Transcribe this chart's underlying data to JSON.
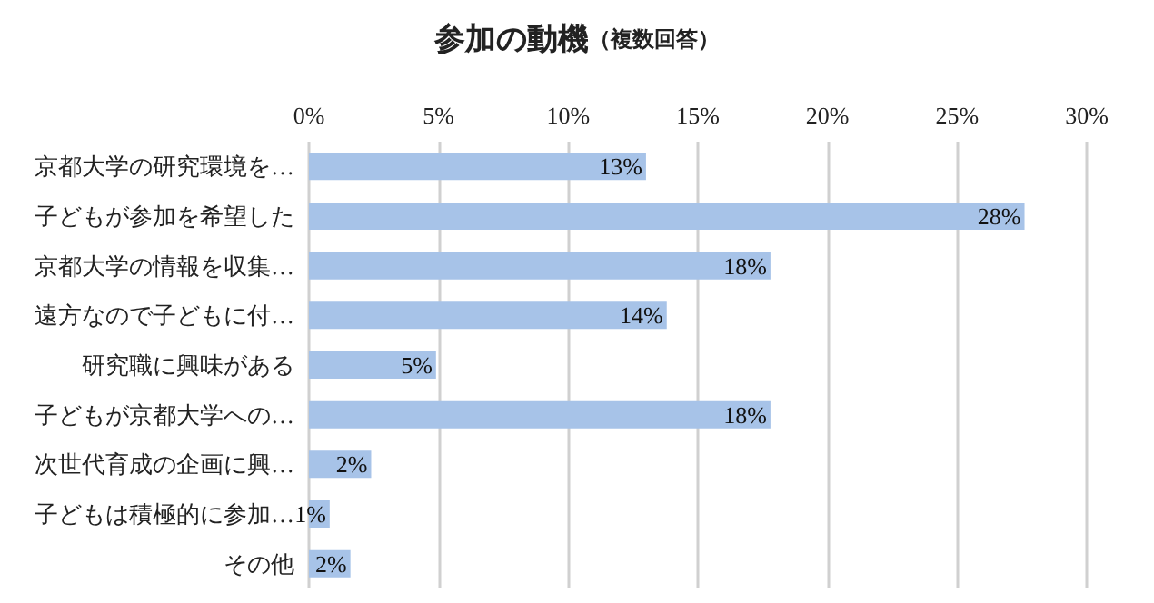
{
  "chart_data": {
    "type": "bar",
    "orientation": "horizontal",
    "title": "参加の動機",
    "subtitle": "（複数回答）",
    "categories": [
      "京都大学の研究環境を…",
      "子どもが参加を希望した",
      "京都大学の情報を収集…",
      "遠方なので子どもに付…",
      "研究職に興味がある",
      "子どもが京都大学への…",
      "次世代育成の企画に興…",
      "子どもは積極的に参加…",
      "その他"
    ],
    "values": [
      13.0,
      27.6,
      17.8,
      13.8,
      4.9,
      17.8,
      2.4,
      0.8,
      1.6
    ],
    "value_labels": [
      "13%",
      "28%",
      "18%",
      "14%",
      "5%",
      "18%",
      "2%",
      "1%",
      "2%"
    ],
    "color": "#a7c3e8",
    "xlim": [
      0,
      30
    ],
    "xticks": [
      {
        "value": 0,
        "label": "0%"
      },
      {
        "value": 5,
        "label": "5%"
      },
      {
        "value": 10,
        "label": "10%"
      },
      {
        "value": 15,
        "label": "15%"
      },
      {
        "value": 20,
        "label": "20%"
      },
      {
        "value": 25,
        "label": "25%"
      },
      {
        "value": 30,
        "label": "30%"
      }
    ],
    "grid": "x"
  }
}
